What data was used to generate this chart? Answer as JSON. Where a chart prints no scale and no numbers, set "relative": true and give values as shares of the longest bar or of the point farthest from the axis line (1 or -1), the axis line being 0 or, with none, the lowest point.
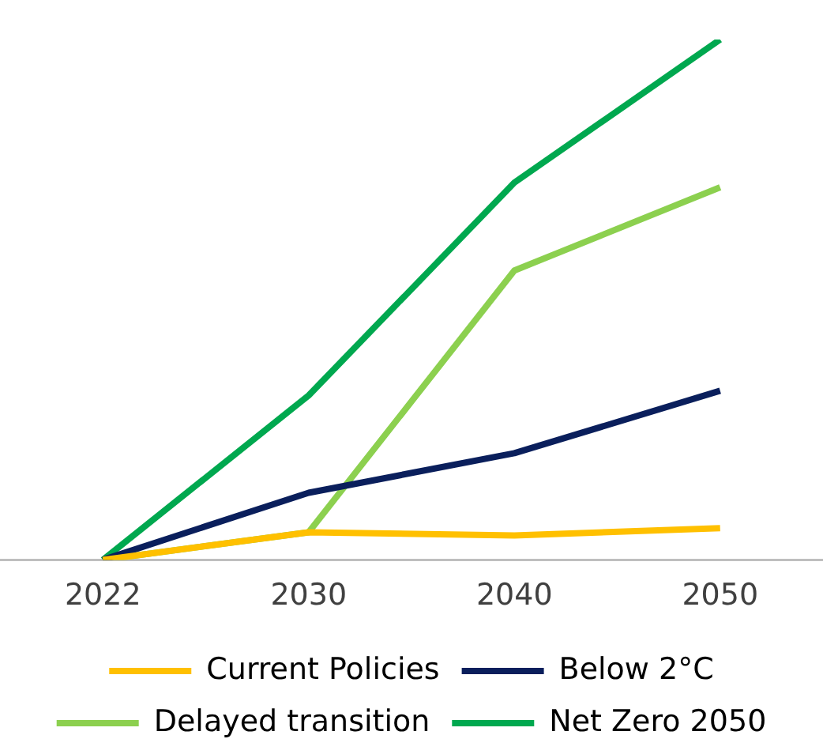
{
  "chart_data": {
    "type": "line",
    "relative": true,
    "categories": [
      "2022",
      "2030",
      "2040",
      "2050"
    ],
    "series": [
      {
        "name": "Current Policies",
        "color": "#ffc000",
        "values": [
          0,
          0.053,
          0.047,
          0.061
        ]
      },
      {
        "name": "Below 2°C",
        "color": "#0a1f5c",
        "values": [
          0,
          0.129,
          0.205,
          0.325
        ]
      },
      {
        "name": "Delayed transition",
        "color": "#8cd04f",
        "values": [
          0,
          0.053,
          0.556,
          0.716
        ]
      },
      {
        "name": "Net Zero 2050",
        "color": "#00a84f",
        "values": [
          0,
          0.316,
          0.725,
          1
        ]
      }
    ],
    "legend": "bottom",
    "grid": false,
    "marker": "none",
    "line_style": "solid"
  }
}
